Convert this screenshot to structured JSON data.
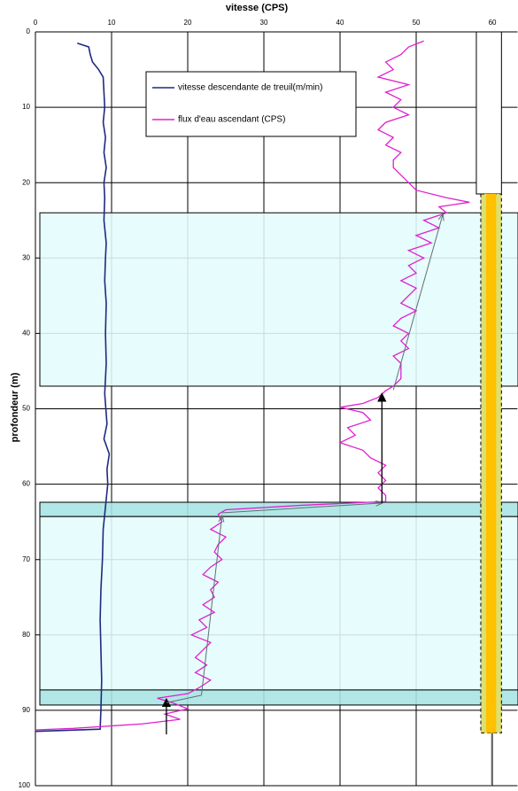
{
  "chart_data": {
    "type": "depth-log",
    "title": "vitesse (CPS)",
    "y_label": "profondeur (m)",
    "xlim": [
      0,
      63.3
    ],
    "ylim": [
      0,
      100
    ],
    "xticks": [
      0,
      10,
      20,
      30,
      40,
      50,
      60
    ],
    "yticks": [
      0,
      10,
      20,
      30,
      40,
      50,
      60,
      70,
      80,
      90,
      100
    ],
    "grid": true,
    "series": [
      {
        "name": "vitesse descendante de treuil(m/min)",
        "color": "#1f2a80",
        "depths": [
          1.5,
          2,
          3,
          4,
          5,
          6,
          8,
          10,
          12,
          14,
          16,
          18,
          20,
          22,
          25,
          28,
          30,
          33,
          36,
          40,
          44,
          48,
          52,
          54,
          56,
          58,
          60,
          63,
          66,
          70,
          74,
          78,
          82,
          86,
          90,
          92.5,
          92.8
        ],
        "values": [
          5.5,
          7,
          7.2,
          7.5,
          8.3,
          8.9,
          9.0,
          9.1,
          8.9,
          9.2,
          9.0,
          9.3,
          9.0,
          9.1,
          9.0,
          9.3,
          9.2,
          9.1,
          9.3,
          9.2,
          9.3,
          9.1,
          9.4,
          9.0,
          9.7,
          9.4,
          9.5,
          9.2,
          8.9,
          8.8,
          8.6,
          8.5,
          8.6,
          8.7,
          8.6,
          8.5,
          0
        ]
      },
      {
        "name": "flux d'eau ascendant (CPS)",
        "color": "#e020d0",
        "depths": [
          1.2,
          2,
          3,
          4,
          5,
          6,
          7,
          8,
          9,
          10,
          11,
          12,
          13,
          14,
          15,
          16,
          17,
          18,
          19,
          20,
          21,
          22,
          22.6,
          23.2,
          24,
          25,
          26,
          27,
          28,
          29,
          30,
          31,
          32,
          33,
          34,
          35,
          36,
          37,
          38,
          39,
          40,
          41,
          42,
          43,
          44,
          45,
          46,
          47,
          47.6,
          48.5,
          49.3,
          49.8,
          50.5,
          51.5,
          52.5,
          53.5,
          54.5,
          55.5,
          56.5,
          57.5,
          58.5,
          59.5,
          60.5,
          61.5,
          62.3,
          62.8,
          63.4,
          64,
          65,
          66,
          67,
          68,
          69,
          70,
          71,
          72,
          73,
          74,
          75,
          76,
          77,
          78,
          79,
          80,
          81,
          82,
          83,
          84,
          85,
          86,
          87,
          87.8,
          88.4,
          89,
          89.8,
          90.5,
          91.2,
          91.8,
          92.4,
          92.6
        ],
        "values": [
          51,
          49,
          48,
          46,
          47,
          45,
          49,
          46,
          48,
          47,
          49,
          46,
          45,
          47,
          46,
          48,
          47,
          47,
          48,
          49,
          50,
          54,
          57,
          53,
          54,
          51,
          53,
          50,
          52,
          49,
          51,
          49,
          50,
          48,
          50,
          49,
          48,
          50,
          48,
          47,
          49,
          48,
          49,
          47,
          48,
          48,
          48,
          47,
          46,
          45,
          43,
          40,
          43,
          44,
          41,
          42,
          40,
          43,
          44,
          46,
          45,
          46,
          45,
          46,
          46,
          35,
          25,
          24,
          24.5,
          23,
          25,
          24,
          23.5,
          24.5,
          23,
          22,
          24,
          23,
          23.5,
          22,
          23.5,
          21.5,
          22.5,
          20.5,
          23,
          22,
          21,
          22.5,
          21,
          23,
          21.5,
          20,
          16,
          18,
          20,
          17,
          19,
          14,
          5,
          0
        ]
      }
    ],
    "zones": [
      {
        "from": 24,
        "to": 47,
        "color": "#e4fcfc"
      },
      {
        "from": 62.4,
        "to": 64.3,
        "color": "#a6e4e4"
      },
      {
        "from": 64.3,
        "to": 87.3,
        "color": "#e4fcfc"
      },
      {
        "from": 87.3,
        "to": 89.3,
        "color": "#a6e4e4"
      }
    ],
    "arrows": [
      {
        "from": [
          17.2,
          93.2
        ],
        "to": [
          17.2,
          88.5
        ],
        "color": "#000000",
        "head": true
      },
      {
        "from": [
          17.2,
          89
        ],
        "to": [
          21.8,
          88
        ],
        "color": "#607070",
        "head": false
      },
      {
        "from": [
          21.8,
          88
        ],
        "to": [
          24.5,
          64.2
        ],
        "color": "#607070",
        "head": true
      },
      {
        "from": [
          24.5,
          63.8
        ],
        "to": [
          45.5,
          62.5
        ],
        "color": "#607070",
        "head": true
      },
      {
        "from": [
          45.5,
          62.5
        ],
        "to": [
          45.5,
          48
        ],
        "color": "#000000",
        "head": true
      },
      {
        "from": [
          47,
          47.5
        ],
        "to": [
          53.5,
          24.2
        ],
        "color": "#607070",
        "head": true
      }
    ],
    "well": {
      "x": [
        57.9,
        61.2
      ],
      "casing": [
        0,
        21.5
      ],
      "screen": [
        21.5,
        93
      ],
      "casing_color": "#ffffff",
      "screen_color": "#dde070",
      "core_color": "#ffc000"
    }
  }
}
